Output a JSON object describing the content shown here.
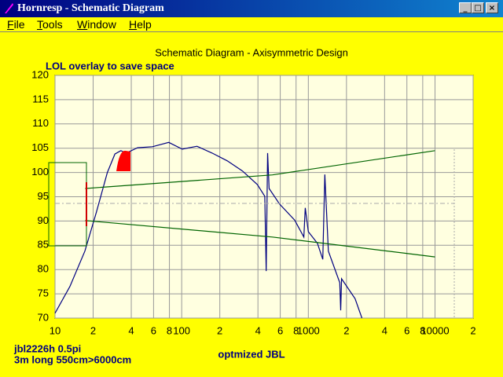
{
  "window": {
    "title": "Hornresp - Schematic Diagram",
    "menu": [
      "File",
      "Tools",
      "Window",
      "Help"
    ]
  },
  "chart_data": {
    "type": "line",
    "title": "Schematic Diagram - Axisymmetric Design",
    "annotation": "LOL overlay to save space",
    "notes": [
      "jbl2226h 0.5pi",
      "3m long 550cm>6000cm"
    ],
    "caption": "optmized JBL",
    "log_x": true,
    "grid": true,
    "xlim": [
      10,
      20000
    ],
    "ylim": [
      70,
      120
    ],
    "xticks": [
      10,
      {
        "value": 20,
        "label": "2"
      },
      {
        "value": 40,
        "label": "4"
      },
      {
        "value": 60,
        "label": "6"
      },
      {
        "value": 80,
        "label": "8"
      },
      100,
      {
        "value": 200,
        "label": "2"
      },
      {
        "value": 400,
        "label": "4"
      },
      {
        "value": 600,
        "label": "6"
      },
      {
        "value": 800,
        "label": "8"
      },
      1000,
      {
        "value": 2000,
        "label": "2"
      },
      {
        "value": 4000,
        "label": "4"
      },
      {
        "value": 6000,
        "label": "6"
      },
      {
        "value": 8000,
        "label": "8"
      },
      10000,
      {
        "value": 20000,
        "label": "2"
      }
    ],
    "yticks": [
      70,
      75,
      80,
      85,
      90,
      95,
      100,
      105,
      110,
      115,
      120
    ],
    "series": [
      {
        "color": "#000080",
        "x": [
          10,
          13.1,
          17.2,
          21.2,
          25.9,
          29.7,
          33.1,
          36.5,
          44.8,
          58.7,
          79,
          101,
          132,
          174,
          229,
          302,
          396,
          453,
          465,
          477,
          490,
          593,
          780,
          921,
          946,
          1000,
          1180,
          1300,
          1350,
          1440,
          1770,
          1800,
          1830,
          2340,
          2650
        ],
        "values": [
          71,
          76.5,
          83.8,
          91.8,
          100,
          103.8,
          104.5,
          104,
          105.1,
          105.3,
          106.2,
          104.8,
          105.4,
          104,
          102.4,
          100.3,
          97.5,
          95.1,
          79.7,
          104,
          96.7,
          93.5,
          90.2,
          86.7,
          92.7,
          87.8,
          85.4,
          82.1,
          99.6,
          83.8,
          77.3,
          71.6,
          78.1,
          74,
          70
        ]
      },
      {
        "color": "#006400",
        "x": [
          17.3,
          520,
          10000
        ],
        "values": [
          96.7,
          99.5,
          104.5
        ]
      },
      {
        "color": "#006400",
        "x": [
          17.3,
          520,
          10000
        ],
        "values": [
          90.1,
          86.7,
          82.6
        ]
      }
    ]
  }
}
